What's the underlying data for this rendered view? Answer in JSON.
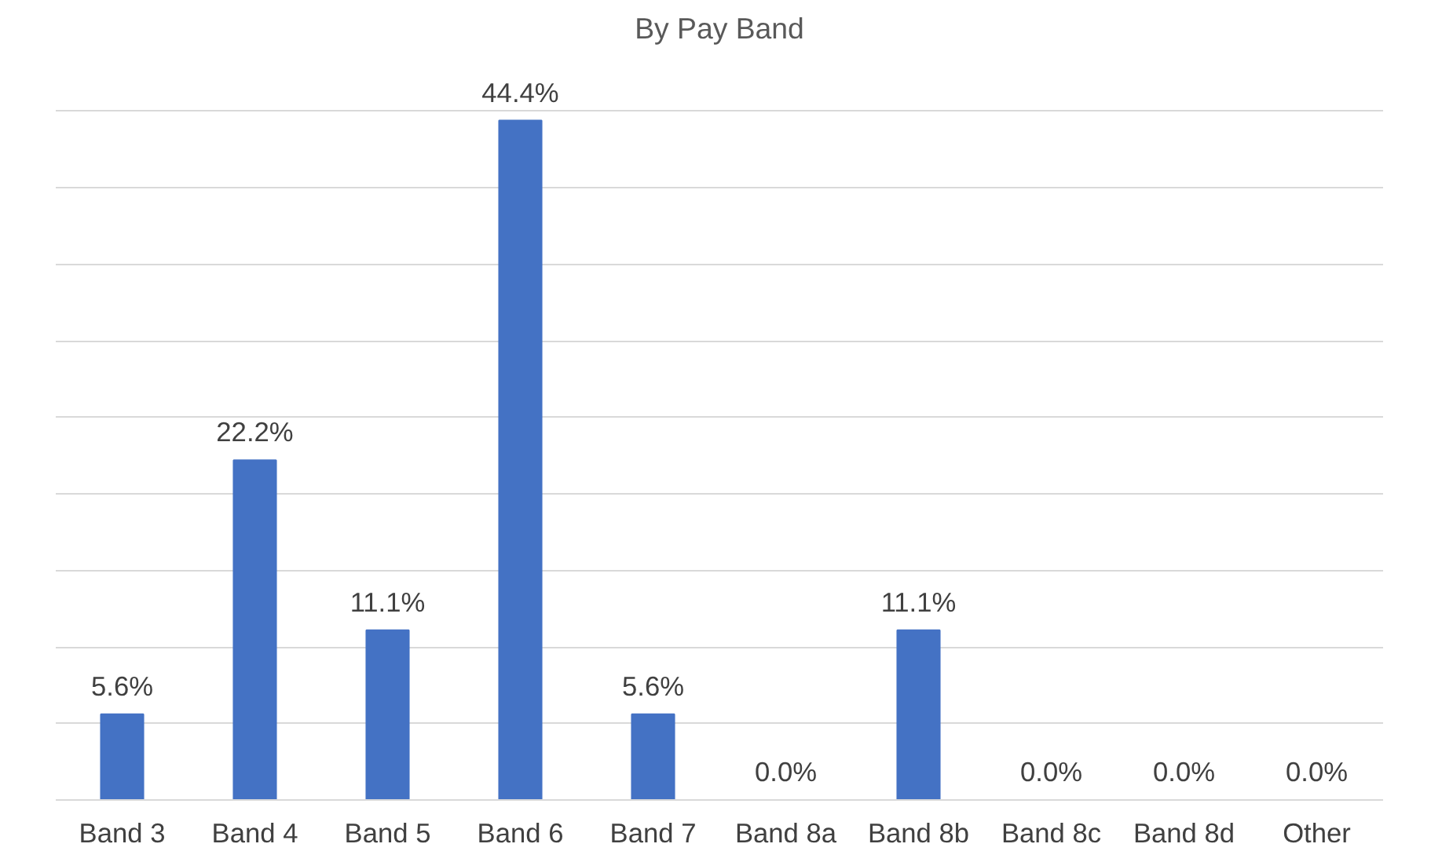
{
  "chart_data": {
    "type": "bar",
    "title": "By Pay Band",
    "categories": [
      "Band 3",
      "Band 4",
      "Band 5",
      "Band 6",
      "Band 7",
      "Band 8a",
      "Band 8b",
      "Band 8c",
      "Band 8d",
      "Other"
    ],
    "values": [
      5.6,
      22.2,
      11.1,
      44.4,
      5.6,
      0.0,
      11.1,
      0.0,
      0.0,
      0.0
    ],
    "value_labels": [
      "5.6%",
      "22.2%",
      "11.1%",
      "44.4%",
      "5.6%",
      "0.0%",
      "11.1%",
      "0.0%",
      "0.0%",
      "0.0%"
    ],
    "color": "#4472c4",
    "grid": "y",
    "tick_labels": "x"
  }
}
